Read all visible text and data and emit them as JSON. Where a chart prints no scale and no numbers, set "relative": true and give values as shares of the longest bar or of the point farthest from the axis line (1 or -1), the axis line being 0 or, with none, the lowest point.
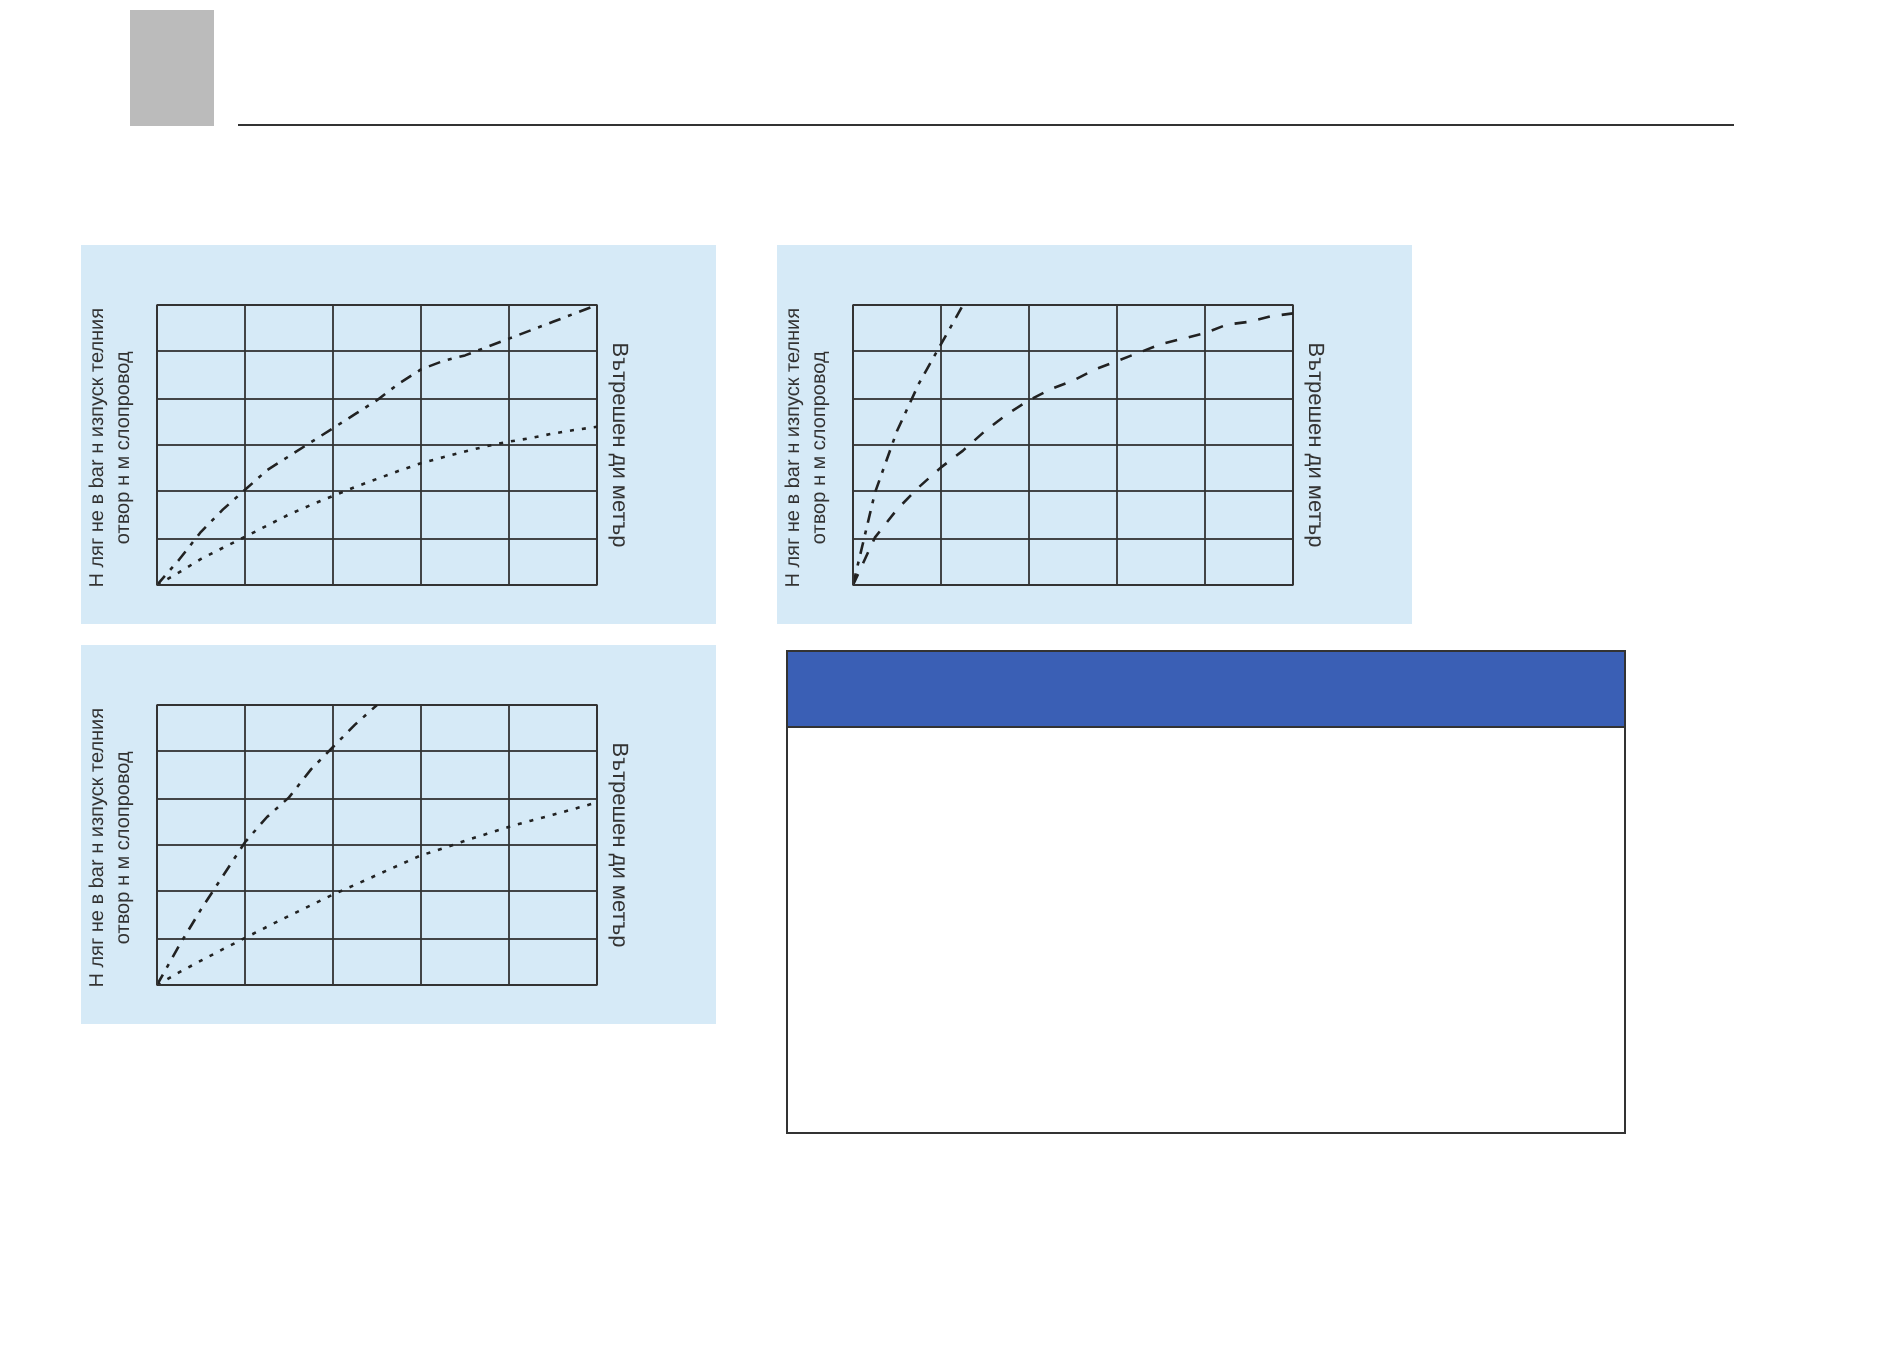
{
  "chart_data": [
    {
      "type": "line",
      "relative": true,
      "ylabel": "Н ляг не в bar н  изпуск телния\nотвор н  м слопровод",
      "legend_title": "Вътрешен ди метър",
      "grid": true,
      "tick_labels": false,
      "marker": "none",
      "categories": [
        null,
        null,
        null,
        null,
        null,
        null,
        null,
        null,
        null,
        null,
        null,
        null,
        null,
        null,
        null,
        null,
        null,
        null,
        null,
        null,
        null
      ],
      "series": [
        {
          "color": "#222222",
          "line_style": "dashdot",
          "values": [
            0,
            0.09,
            0.19,
            0.27,
            0.34,
            0.41,
            0.46,
            0.51,
            0.56,
            0.61,
            0.66,
            0.72,
            0.77,
            0.8,
            0.82,
            0.85,
            0.88,
            0.91,
            0.94,
            0.97,
            1.0
          ]
        },
        {
          "color": "#222222",
          "line_style": "dotted",
          "values": [
            0,
            0.045,
            0.093,
            0.133,
            0.172,
            0.212,
            0.252,
            0.286,
            0.318,
            0.35,
            0.379,
            0.408,
            0.435,
            0.456,
            0.477,
            0.496,
            0.512,
            0.525,
            0.541,
            0.554,
            0.565
          ]
        }
      ]
    },
    {
      "type": "line",
      "relative": true,
      "ylabel": "Н ляг не в bar н  изпуск телния\nотвор н  м слопровод",
      "legend_title": "Вътрешен ди метър",
      "grid": true,
      "tick_labels": false,
      "marker": "none",
      "categories": [
        null,
        null,
        null,
        null,
        null,
        null,
        null,
        null,
        null,
        null,
        null,
        null,
        null,
        null,
        null,
        null,
        null,
        null,
        null,
        null,
        null
      ],
      "series": [
        {
          "color": "#222222",
          "line_style": "dashdot",
          "values": [
            0,
            0.33,
            0.55,
            0.72,
            0.86,
            1.0,
            null,
            null,
            null,
            null,
            null,
            null,
            null,
            null,
            null,
            null,
            null,
            null,
            null,
            null,
            null
          ]
        },
        {
          "color": "#222222",
          "line_style": "dashed",
          "values": [
            0,
            0.17,
            0.27,
            0.35,
            0.42,
            0.48,
            0.55,
            0.61,
            0.66,
            0.7,
            0.73,
            0.77,
            0.8,
            0.83,
            0.86,
            0.88,
            0.9,
            0.93,
            0.94,
            0.96,
            0.97
          ]
        }
      ]
    },
    {
      "type": "line",
      "relative": true,
      "ylabel": "Н ляг не в bar н  изпуск телния\nотвор н  м слопровод",
      "legend_title": "Вътрешен ди метър",
      "grid": true,
      "tick_labels": false,
      "marker": "none",
      "categories": [
        null,
        null,
        null,
        null,
        null,
        null,
        null,
        null,
        null,
        null,
        null,
        null,
        null,
        null,
        null,
        null,
        null,
        null,
        null,
        null,
        null
      ],
      "series": [
        {
          "color": "#222222",
          "line_style": "dashdot",
          "values": [
            0,
            0.14,
            0.27,
            0.39,
            0.51,
            0.6,
            0.67,
            0.77,
            0.85,
            0.93,
            1.0,
            null,
            null,
            null,
            null,
            null,
            null,
            null,
            null,
            null,
            null
          ]
        },
        {
          "color": "#222222",
          "line_style": "dotted",
          "values": [
            0,
            0.045,
            0.087,
            0.128,
            0.168,
            0.208,
            0.247,
            0.285,
            0.323,
            0.358,
            0.393,
            0.428,
            0.463,
            0.488,
            0.515,
            0.54,
            0.565,
            0.587,
            0.608,
            0.63,
            0.652
          ]
        }
      ]
    }
  ]
}
